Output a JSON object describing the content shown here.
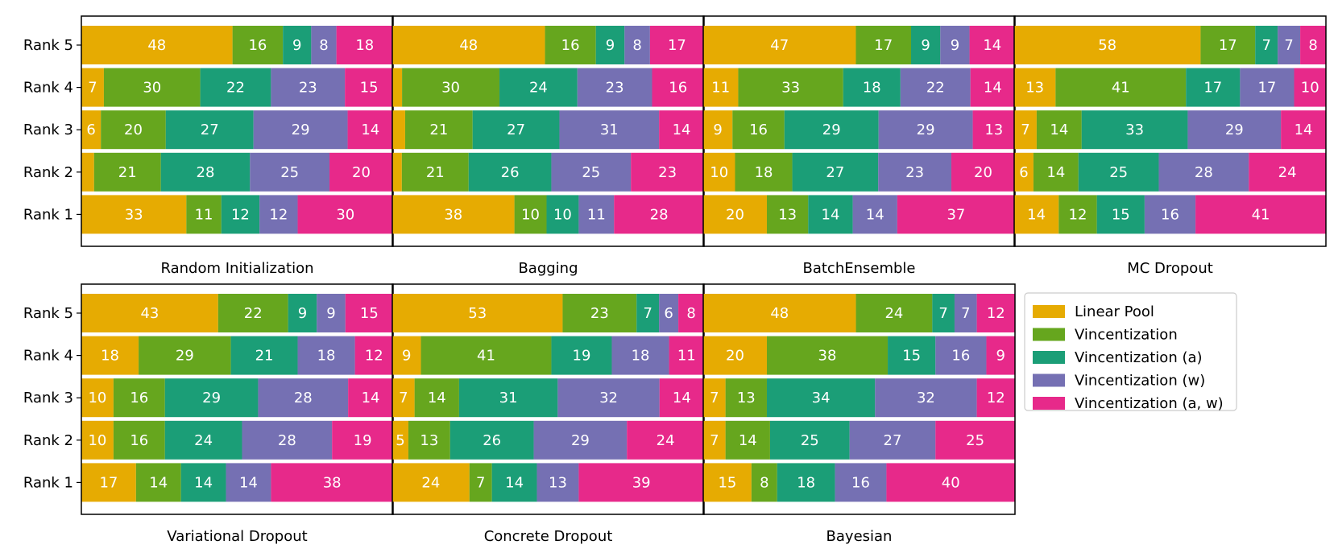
{
  "chart_data": {
    "type": "bar",
    "orientation": "horizontal",
    "stacked": true,
    "legend_position": "right",
    "legend": {
      "entries": [
        {
          "name": "Linear Pool",
          "color": "#e6ab02"
        },
        {
          "name": "Vincentization",
          "color": "#66a61e"
        },
        {
          "name": "Vincentization (a)",
          "color": "#1b9e77"
        },
        {
          "name": "Vincentization (w)",
          "color": "#7570b3"
        },
        {
          "name": "Vincentization (a, w)",
          "color": "#e7298a"
        }
      ]
    },
    "categories": [
      "Rank 5",
      "Rank 4",
      "Rank 3",
      "Rank 2",
      "Rank 1"
    ],
    "panels": [
      {
        "title": "Random Initialization",
        "values": [
          [
            48,
            16,
            9,
            8,
            18
          ],
          [
            7,
            30,
            22,
            23,
            15
          ],
          [
            6,
            20,
            27,
            29,
            14
          ],
          [
            4,
            21,
            28,
            25,
            20
          ],
          [
            33,
            11,
            12,
            12,
            30
          ]
        ],
        "labels": [
          [
            "48",
            "16",
            "9",
            "8",
            "18"
          ],
          [
            "7",
            "30",
            "22",
            "23",
            "15"
          ],
          [
            "6",
            "20",
            "27",
            "29",
            "14"
          ],
          [
            "",
            "21",
            "28",
            "25",
            "20"
          ],
          [
            "33",
            "11",
            "12",
            "12",
            "30"
          ]
        ]
      },
      {
        "title": "Bagging",
        "values": [
          [
            48,
            16,
            9,
            8,
            17
          ],
          [
            3,
            30,
            24,
            23,
            16
          ],
          [
            4,
            21,
            27,
            31,
            14
          ],
          [
            3,
            21,
            26,
            25,
            23
          ],
          [
            38,
            10,
            10,
            11,
            28
          ]
        ],
        "labels": [
          [
            "48",
            "16",
            "9",
            "8",
            "17"
          ],
          [
            "",
            "30",
            "24",
            "23",
            "16"
          ],
          [
            "",
            "21",
            "27",
            "31",
            "14"
          ],
          [
            "",
            "21",
            "26",
            "25",
            "23"
          ],
          [
            "38",
            "10",
            "10",
            "11",
            "28"
          ]
        ]
      },
      {
        "title": "BatchEnsemble",
        "values": [
          [
            47,
            17,
            9,
            9,
            14
          ],
          [
            11,
            33,
            18,
            22,
            14
          ],
          [
            9,
            16,
            29,
            29,
            13
          ],
          [
            10,
            18,
            27,
            23,
            20
          ],
          [
            20,
            13,
            14,
            14,
            37
          ]
        ],
        "labels": [
          [
            "47",
            "17",
            "9",
            "9",
            "14"
          ],
          [
            "11",
            "33",
            "18",
            "22",
            "14"
          ],
          [
            "9",
            "16",
            "29",
            "29",
            "13"
          ],
          [
            "10",
            "18",
            "27",
            "23",
            "20"
          ],
          [
            "20",
            "13",
            "14",
            "14",
            "37"
          ]
        ]
      },
      {
        "title": "MC Dropout",
        "values": [
          [
            58,
            17,
            7,
            7,
            8
          ],
          [
            13,
            41,
            17,
            17,
            10
          ],
          [
            7,
            14,
            33,
            29,
            14
          ],
          [
            6,
            14,
            25,
            28,
            24
          ],
          [
            14,
            12,
            15,
            16,
            41
          ]
        ],
        "labels": [
          [
            "58",
            "17",
            "7",
            "7",
            "8"
          ],
          [
            "13",
            "41",
            "17",
            "17",
            "10"
          ],
          [
            "7",
            "14",
            "33",
            "29",
            "14"
          ],
          [
            "6",
            "14",
            "25",
            "28",
            "24"
          ],
          [
            "14",
            "12",
            "15",
            "16",
            "41"
          ]
        ]
      },
      {
        "title": "Variational Dropout",
        "values": [
          [
            43,
            22,
            9,
            9,
            15
          ],
          [
            18,
            29,
            21,
            18,
            12
          ],
          [
            10,
            16,
            29,
            28,
            14
          ],
          [
            10,
            16,
            24,
            28,
            19
          ],
          [
            17,
            14,
            14,
            14,
            38
          ]
        ],
        "labels": [
          [
            "43",
            "22",
            "9",
            "9",
            "15"
          ],
          [
            "18",
            "29",
            "21",
            "18",
            "12"
          ],
          [
            "10",
            "16",
            "29",
            "28",
            "14"
          ],
          [
            "10",
            "16",
            "24",
            "28",
            "19"
          ],
          [
            "17",
            "14",
            "14",
            "14",
            "38"
          ]
        ]
      },
      {
        "title": "Concrete Dropout",
        "values": [
          [
            53,
            23,
            7,
            6,
            8
          ],
          [
            9,
            41,
            19,
            18,
            11
          ],
          [
            7,
            14,
            31,
            32,
            14
          ],
          [
            5,
            13,
            26,
            29,
            24
          ],
          [
            24,
            7,
            14,
            13,
            39
          ]
        ],
        "labels": [
          [
            "53",
            "23",
            "7",
            "6",
            "8"
          ],
          [
            "9",
            "41",
            "19",
            "18",
            "11"
          ],
          [
            "7",
            "14",
            "31",
            "32",
            "14"
          ],
          [
            "5",
            "13",
            "26",
            "29",
            "24"
          ],
          [
            "24",
            "7",
            "14",
            "13",
            "39"
          ]
        ]
      },
      {
        "title": "Bayesian",
        "values": [
          [
            48,
            24,
            7,
            7,
            12
          ],
          [
            20,
            38,
            15,
            16,
            9
          ],
          [
            7,
            13,
            34,
            32,
            12
          ],
          [
            7,
            14,
            25,
            27,
            25
          ],
          [
            15,
            8,
            18,
            16,
            40
          ]
        ],
        "labels": [
          [
            "48",
            "24",
            "7",
            "7",
            "12"
          ],
          [
            "20",
            "38",
            "15",
            "16",
            "9"
          ],
          [
            "7",
            "13",
            "34",
            "32",
            "12"
          ],
          [
            "7",
            "14",
            "25",
            "27",
            "25"
          ],
          [
            "15",
            "8",
            "18",
            "16",
            "40"
          ]
        ]
      }
    ]
  }
}
